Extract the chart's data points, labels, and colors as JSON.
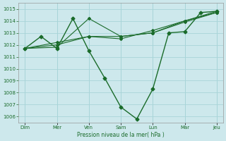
{
  "bg_color": "#cde8ec",
  "grid_color": "#a8d4d8",
  "line_color": "#1a6b2a",
  "xlabel": "Pression niveau de la mer( hPa )",
  "ylim": [
    1005.5,
    1015.5
  ],
  "yticks": [
    1006,
    1007,
    1008,
    1009,
    1010,
    1011,
    1012,
    1013,
    1014,
    1015
  ],
  "xtick_positions": [
    0,
    1,
    2,
    3,
    4,
    5,
    6
  ],
  "xtick_labels": [
    "Dim",
    "Mer",
    "Ven",
    "Sam",
    "Lun",
    "Mar",
    "Jeu"
  ],
  "xlim": [
    -0.2,
    6.2
  ],
  "series": [
    {
      "x": [
        0,
        0.5,
        1,
        1.5,
        2,
        2.5,
        3,
        3.5,
        4,
        4.5,
        5,
        5.5,
        6
      ],
      "y": [
        1011.7,
        1012.7,
        1011.7,
        1014.2,
        1011.5,
        1009.2,
        1006.8,
        1005.8,
        1008.3,
        1013.0,
        1013.1,
        1014.7,
        1014.8
      ]
    },
    {
      "x": [
        0,
        1,
        2,
        3,
        4,
        5,
        6
      ],
      "y": [
        1011.7,
        1011.8,
        1014.2,
        1012.7,
        1013.0,
        1014.0,
        1014.8
      ]
    },
    {
      "x": [
        0,
        1,
        2,
        3,
        4,
        5,
        6
      ],
      "y": [
        1011.7,
        1012.0,
        1012.7,
        1012.7,
        1013.0,
        1013.9,
        1014.7
      ]
    },
    {
      "x": [
        0,
        1,
        2,
        3,
        4,
        5,
        6
      ],
      "y": [
        1011.7,
        1012.2,
        1012.7,
        1012.5,
        1013.2,
        1014.0,
        1014.7
      ]
    }
  ]
}
